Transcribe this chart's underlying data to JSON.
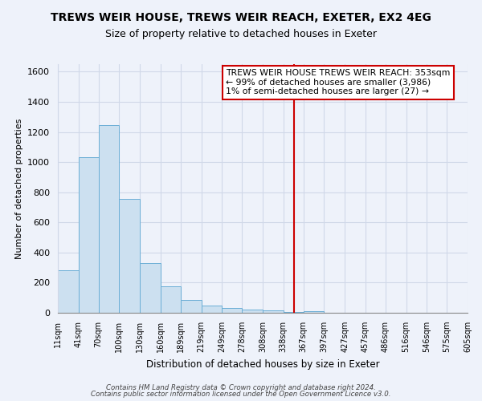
{
  "title": "TREWS WEIR HOUSE, TREWS WEIR REACH, EXETER, EX2 4EG",
  "subtitle": "Size of property relative to detached houses in Exeter",
  "xlabel": "Distribution of detached houses by size in Exeter",
  "ylabel": "Number of detached properties",
  "bin_edges": [
    11,
    41,
    70,
    100,
    130,
    160,
    189,
    219,
    249,
    278,
    308,
    338,
    367,
    397,
    427,
    457,
    486,
    516,
    546,
    575,
    605
  ],
  "bin_counts": [
    280,
    1035,
    1245,
    755,
    330,
    175,
    85,
    50,
    30,
    20,
    15,
    5,
    10,
    0,
    2,
    0,
    0,
    0,
    0,
    2
  ],
  "tick_labels": [
    "11sqm",
    "41sqm",
    "70sqm",
    "100sqm",
    "130sqm",
    "160sqm",
    "189sqm",
    "219sqm",
    "249sqm",
    "278sqm",
    "308sqm",
    "338sqm",
    "367sqm",
    "397sqm",
    "427sqm",
    "457sqm",
    "486sqm",
    "516sqm",
    "546sqm",
    "575sqm",
    "605sqm"
  ],
  "bar_color": "#cce0f0",
  "bar_edge_color": "#6baed6",
  "vline_x": 353,
  "vline_color": "#cc0000",
  "annotation_title": "TREWS WEIR HOUSE TREWS WEIR REACH: 353sqm",
  "annotation_line2": "← 99% of detached houses are smaller (3,986)",
  "annotation_line3": "1% of semi-detached houses are larger (27) →",
  "ylim": [
    0,
    1650
  ],
  "yticks": [
    0,
    200,
    400,
    600,
    800,
    1000,
    1200,
    1400,
    1600
  ],
  "footnote1": "Contains HM Land Registry data © Crown copyright and database right 2024.",
  "footnote2": "Contains public sector information licensed under the Open Government Licence v3.0.",
  "bg_color": "#eef2fa",
  "grid_color": "#d0d8e8"
}
